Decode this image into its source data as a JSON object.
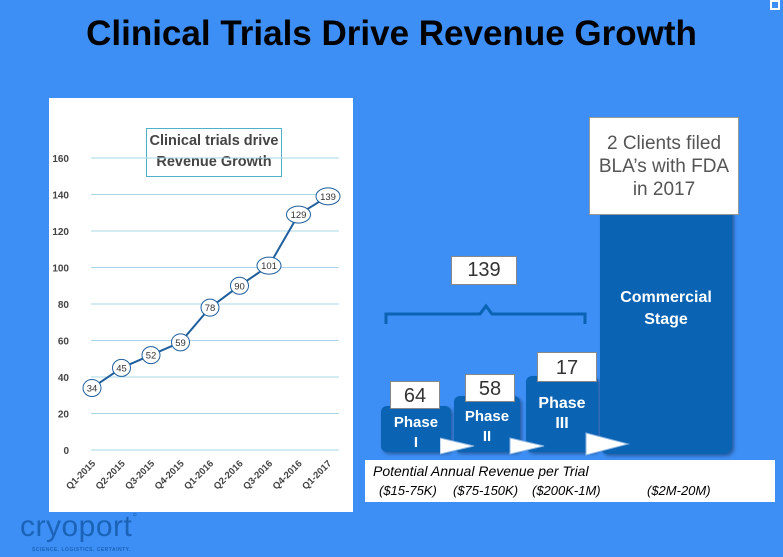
{
  "slide": {
    "title": "Clinical Trials Drive Revenue Growth"
  },
  "chart_data": {
    "type": "line",
    "title": "Clinical trials drive Revenue Growth",
    "categories": [
      "Q1-2015",
      "Q2-2015",
      "Q3-2015",
      "Q4-2015",
      "Q1-2016",
      "Q2-2016",
      "Q3-2016",
      "Q4-2016",
      "Q1-2017"
    ],
    "values": [
      34,
      45,
      52,
      59,
      78,
      90,
      101,
      129,
      139
    ],
    "ylim": [
      0,
      160
    ],
    "yticks": [
      0,
      20,
      40,
      60,
      80,
      100,
      120,
      140,
      160
    ],
    "grid": true,
    "colors": {
      "line": "#1f5f9e",
      "grid": "#a9d7e6",
      "marker_fill": "#ffffff"
    }
  },
  "phases": {
    "total": "139",
    "items": [
      {
        "count": "64",
        "label1": "Phase",
        "label2": "I"
      },
      {
        "count": "58",
        "label1": "Phase",
        "label2": "II"
      },
      {
        "count": "17",
        "label1": "Phase",
        "label2": "III"
      }
    ],
    "commercial_line1": "Commercial",
    "commercial_line2": "Stage",
    "clients_line1": "2 Clients filed",
    "clients_line2": "BLA’s with FDA",
    "clients_line3": "in 2017"
  },
  "revenue": {
    "title": "Potential Annual Revenue per Trial",
    "values": [
      "($15-75K)",
      "($75-150K)",
      "($200K-1M)",
      "($2M-20M)"
    ]
  },
  "logo": {
    "name": "cryoport",
    "tagline": "SCIENCE. LOGISTICS. CERTAINTY."
  },
  "colors": {
    "background": "#3d8ef5",
    "phase_box": "#0a63b3"
  }
}
